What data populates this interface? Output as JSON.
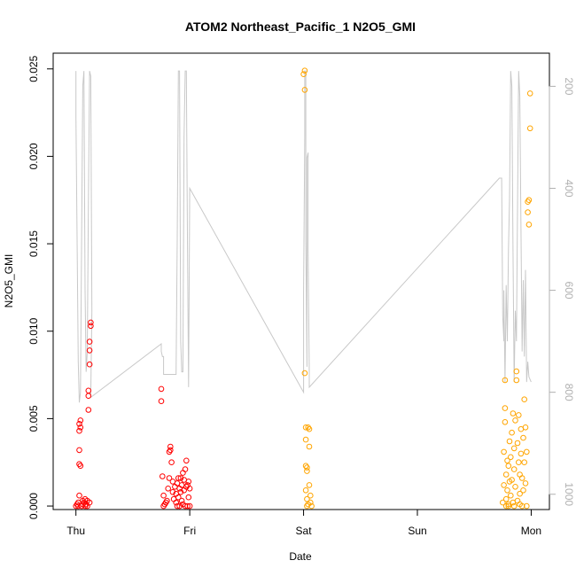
{
  "chart_data": {
    "type": "scatter",
    "title": "ATOM2 Northeast_Pacific_1 N2O5_GMI",
    "xlabel": "Date",
    "ylabel": "N2O5_GMI",
    "x_ticks": [
      "Thu",
      "Fri",
      "Sat",
      "Sun",
      "Mon"
    ],
    "xlim": [
      -0.2,
      4.16
    ],
    "ylim": [
      -0.0002,
      0.0259
    ],
    "y_ticks": [
      0.0,
      0.005,
      0.01,
      0.015,
      0.02,
      0.025
    ],
    "y_tick_labels": [
      "0.000",
      "0.005",
      "0.010",
      "0.015",
      "0.020",
      "0.025"
    ],
    "y2_ticks": [
      200,
      400,
      600,
      800,
      1000
    ],
    "y2_tick_labels": [
      "200",
      "400",
      "600",
      "800",
      "1000"
    ],
    "y2lim": [
      1030,
      135
    ],
    "y2_reversed": true,
    "colors": {
      "red": "#ff0000",
      "orange": "#ffa500",
      "pressure": "#c8c8c8"
    },
    "series": [
      {
        "color": "red",
        "points": [
          [
            0.0,
            0.0
          ],
          [
            0.01,
            0.0001
          ],
          [
            0.02,
            0.0
          ],
          [
            0.02,
            0.0002
          ],
          [
            0.03,
            0.0006
          ],
          [
            0.03,
            0.0024
          ],
          [
            0.04,
            0.0023
          ],
          [
            0.03,
            0.0032
          ],
          [
            0.03,
            0.0043
          ],
          [
            0.04,
            0.0045
          ],
          [
            0.03,
            0.0047
          ],
          [
            0.04,
            0.0049
          ],
          [
            0.05,
            0.0
          ],
          [
            0.06,
            0.0001
          ],
          [
            0.06,
            0.0003
          ],
          [
            0.07,
            0.0002
          ],
          [
            0.08,
            0.0
          ],
          [
            0.08,
            0.0004
          ],
          [
            0.09,
            0.0001
          ],
          [
            0.1,
            0.0
          ],
          [
            0.1,
            0.0003
          ],
          [
            0.11,
            0.0055
          ],
          [
            0.11,
            0.0063
          ],
          [
            0.11,
            0.0066
          ],
          [
            0.12,
            0.0081
          ],
          [
            0.12,
            0.0089
          ],
          [
            0.12,
            0.0094
          ],
          [
            0.13,
            0.0103
          ],
          [
            0.13,
            0.0105
          ],
          [
            0.12,
            0.0002
          ],
          [
            0.75,
            0.006
          ],
          [
            0.75,
            0.0067
          ],
          [
            0.76,
            0.0017
          ],
          [
            0.77,
            0.0006
          ],
          [
            0.77,
            0.0
          ],
          [
            0.78,
            0.0001
          ],
          [
            0.79,
            0.0002
          ],
          [
            0.8,
            0.0003
          ],
          [
            0.81,
            0.001
          ],
          [
            0.82,
            0.0016
          ],
          [
            0.82,
            0.0031
          ],
          [
            0.83,
            0.0032
          ],
          [
            0.83,
            0.0034
          ],
          [
            0.84,
            0.0025
          ],
          [
            0.85,
            0.0014
          ],
          [
            0.85,
            0.0008
          ],
          [
            0.86,
            0.0004
          ],
          [
            0.87,
            0.0011
          ],
          [
            0.88,
            0.0002
          ],
          [
            0.88,
            0.0007
          ],
          [
            0.89,
            0.0
          ],
          [
            0.89,
            0.0013
          ],
          [
            0.9,
            0.0016
          ],
          [
            0.9,
            0.0005
          ],
          [
            0.91,
            0.001
          ],
          [
            0.91,
            0.0
          ],
          [
            0.92,
            0.0016
          ],
          [
            0.92,
            0.0008
          ],
          [
            0.93,
            0.0012
          ],
          [
            0.93,
            0.0003
          ],
          [
            0.94,
            0.0001
          ],
          [
            0.94,
            0.0019
          ],
          [
            0.95,
            0.0009
          ],
          [
            0.95,
            0.0015
          ],
          [
            0.96,
            0.0021
          ],
          [
            0.96,
            0.0
          ],
          [
            0.97,
            0.0011
          ],
          [
            0.97,
            0.0026
          ],
          [
            0.98,
            0.0012
          ],
          [
            0.98,
            0.0
          ],
          [
            0.99,
            0.0014
          ],
          [
            0.99,
            0.0005
          ],
          [
            1.0,
            0.001
          ],
          [
            1.0,
            0.0
          ]
        ]
      },
      {
        "color": "orange",
        "points": [
          [
            2.0,
            0.0247
          ],
          [
            2.01,
            0.0249
          ],
          [
            2.01,
            0.0238
          ],
          [
            2.01,
            0.0076
          ],
          [
            2.02,
            0.0045
          ],
          [
            2.02,
            0.0038
          ],
          [
            2.02,
            0.0023
          ],
          [
            2.03,
            0.0022
          ],
          [
            2.03,
            0.002
          ],
          [
            2.02,
            0.0009
          ],
          [
            2.03,
            0.0004
          ],
          [
            2.03,
            0.0
          ],
          [
            2.04,
            0.0001
          ],
          [
            2.04,
            0.0045
          ],
          [
            2.05,
            0.0044
          ],
          [
            2.05,
            0.0034
          ],
          [
            2.05,
            0.0012
          ],
          [
            2.06,
            0.0006
          ],
          [
            2.06,
            0.0002
          ],
          [
            2.07,
            0.0
          ],
          [
            3.75,
            0.0002
          ],
          [
            3.76,
            0.0012
          ],
          [
            3.76,
            0.0031
          ],
          [
            3.77,
            0.0048
          ],
          [
            3.77,
            0.0056
          ],
          [
            3.77,
            0.0072
          ],
          [
            3.78,
            0.0004
          ],
          [
            3.78,
            0.0018
          ],
          [
            3.79,
            0.0009
          ],
          [
            3.79,
            0.0026
          ],
          [
            3.8,
            0.0023
          ],
          [
            3.8,
            0.0
          ],
          [
            3.81,
            0.0014
          ],
          [
            3.81,
            0.0037
          ],
          [
            3.82,
            0.0028
          ],
          [
            3.82,
            0.0006
          ],
          [
            3.83,
            0.0042
          ],
          [
            3.83,
            0.0015
          ],
          [
            3.84,
            0.0053
          ],
          [
            3.84,
            0.0002
          ],
          [
            3.85,
            0.0033
          ],
          [
            3.85,
            0.0021
          ],
          [
            3.86,
            0.0049
          ],
          [
            3.86,
            0.0011
          ],
          [
            3.87,
            0.0077
          ],
          [
            3.87,
            0.0072
          ],
          [
            3.88,
            0.0036
          ],
          [
            3.88,
            0.0003
          ],
          [
            3.89,
            0.0025
          ],
          [
            3.89,
            0.0052
          ],
          [
            3.9,
            0.0018
          ],
          [
            3.9,
            0.0007
          ],
          [
            3.91,
            0.0044
          ],
          [
            3.91,
            0.003
          ],
          [
            3.92,
            0.0016
          ],
          [
            3.92,
            0.0
          ],
          [
            3.93,
            0.0039
          ],
          [
            3.93,
            0.0009
          ],
          [
            3.94,
            0.0061
          ],
          [
            3.94,
            0.0025
          ],
          [
            3.95,
            0.0045
          ],
          [
            3.95,
            0.0013
          ],
          [
            3.96,
            0.0
          ],
          [
            3.96,
            0.0031
          ],
          [
            3.97,
            0.0168
          ],
          [
            3.97,
            0.0174
          ],
          [
            3.98,
            0.0175
          ],
          [
            3.98,
            0.0161
          ],
          [
            3.99,
            0.0216
          ],
          [
            3.99,
            0.0236
          ],
          [
            3.9,
            0.0001
          ],
          [
            3.85,
            0.0
          ],
          [
            3.8,
            0.0001
          ],
          [
            3.78,
            0.0
          ]
        ]
      }
    ],
    "pressure_line": [
      [
        0.0,
        170
      ],
      [
        0.0,
        260
      ],
      [
        0.01,
        500
      ],
      [
        0.02,
        740
      ],
      [
        0.03,
        820
      ],
      [
        0.04,
        800
      ],
      [
        0.05,
        500
      ],
      [
        0.06,
        200
      ],
      [
        0.07,
        170
      ],
      [
        0.08,
        600
      ],
      [
        0.09,
        760
      ],
      [
        0.1,
        720
      ],
      [
        0.11,
        420
      ],
      [
        0.12,
        170
      ],
      [
        0.13,
        180
      ],
      [
        0.14,
        640
      ],
      [
        0.13,
        810
      ],
      [
        0.75,
        705
      ],
      [
        0.75,
        720
      ],
      [
        0.76,
        730
      ],
      [
        0.77,
        730
      ],
      [
        0.77,
        765
      ],
      [
        0.8,
        765
      ],
      [
        0.82,
        765
      ],
      [
        0.85,
        765
      ],
      [
        0.88,
        765
      ],
      [
        0.89,
        500
      ],
      [
        0.9,
        170
      ],
      [
        0.91,
        170
      ],
      [
        0.92,
        700
      ],
      [
        0.93,
        760
      ],
      [
        0.94,
        760
      ],
      [
        0.95,
        300
      ],
      [
        0.96,
        170
      ],
      [
        0.97,
        170
      ],
      [
        0.98,
        520
      ],
      [
        0.99,
        790
      ],
      [
        1.0,
        400
      ],
      [
        2.0,
        800
      ],
      [
        2.0,
        780
      ],
      [
        2.0,
        600
      ],
      [
        2.01,
        300
      ],
      [
        2.01,
        170
      ],
      [
        2.02,
        170
      ],
      [
        2.02,
        500
      ],
      [
        2.03,
        750
      ],
      [
        2.03,
        340
      ],
      [
        2.04,
        330
      ],
      [
        2.04,
        520
      ],
      [
        2.05,
        760
      ],
      [
        2.05,
        790
      ],
      [
        3.72,
        380
      ],
      [
        3.74,
        380
      ],
      [
        3.75,
        650
      ],
      [
        3.76,
        700
      ],
      [
        3.76,
        600
      ],
      [
        3.77,
        780
      ],
      [
        3.78,
        590
      ],
      [
        3.79,
        700
      ],
      [
        3.8,
        520
      ],
      [
        3.81,
        420
      ],
      [
        3.82,
        170
      ],
      [
        3.83,
        200
      ],
      [
        3.84,
        520
      ],
      [
        3.85,
        780
      ],
      [
        3.86,
        640
      ],
      [
        3.87,
        700
      ],
      [
        3.88,
        440
      ],
      [
        3.89,
        170
      ],
      [
        3.9,
        220
      ],
      [
        3.91,
        480
      ],
      [
        3.92,
        720
      ],
      [
        3.93,
        580
      ],
      [
        3.94,
        730
      ],
      [
        3.95,
        560
      ],
      [
        3.96,
        780
      ],
      [
        3.97,
        740
      ],
      [
        3.98,
        770
      ],
      [
        4.0,
        780
      ]
    ]
  }
}
